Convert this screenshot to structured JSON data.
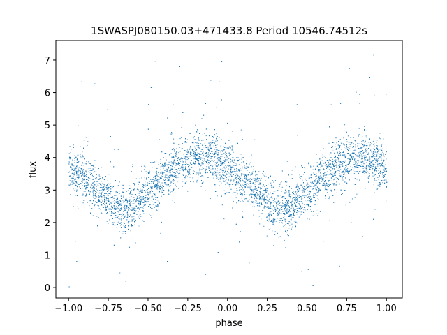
{
  "chart_data": {
    "type": "scatter",
    "title": "1SWASPJ080150.03+471433.8 Period 10546.74512s",
    "xlabel": "phase",
    "ylabel": "flux",
    "xlim": [
      -1.08,
      1.1
    ],
    "ylim": [
      -0.32,
      7.6
    ],
    "xticks": [
      -1.0,
      -0.75,
      -0.5,
      -0.25,
      0.0,
      0.25,
      0.5,
      0.75,
      1.0
    ],
    "xtick_labels": [
      "−1.00",
      "−0.75",
      "−0.50",
      "−0.25",
      "0.00",
      "0.25",
      "0.50",
      "0.75",
      "1.00"
    ],
    "yticks": [
      0,
      1,
      2,
      3,
      4,
      5,
      6,
      7
    ],
    "ytick_labels": [
      "0",
      "1",
      "2",
      "3",
      "4",
      "5",
      "6",
      "7"
    ],
    "marker_color": "#1f77b4",
    "grid": false,
    "legend": "none",
    "series": [
      {
        "phase": [
          -1.0,
          -0.9,
          -0.8,
          -0.7,
          -0.65,
          -0.6,
          -0.5,
          -0.4,
          -0.3,
          -0.2,
          -0.15,
          -0.1,
          0.0,
          0.1,
          0.2,
          0.3,
          0.35,
          0.4,
          0.5,
          0.6,
          0.7,
          0.8,
          0.85,
          0.9,
          1.0
        ],
        "flux_median": [
          3.7,
          3.4,
          2.9,
          2.5,
          2.4,
          2.5,
          2.9,
          3.4,
          3.8,
          4.0,
          4.05,
          4.0,
          3.7,
          3.3,
          2.9,
          2.5,
          2.4,
          2.5,
          2.9,
          3.4,
          3.8,
          4.0,
          4.05,
          4.0,
          3.7
        ],
        "band_half_width": 0.65
      }
    ]
  }
}
